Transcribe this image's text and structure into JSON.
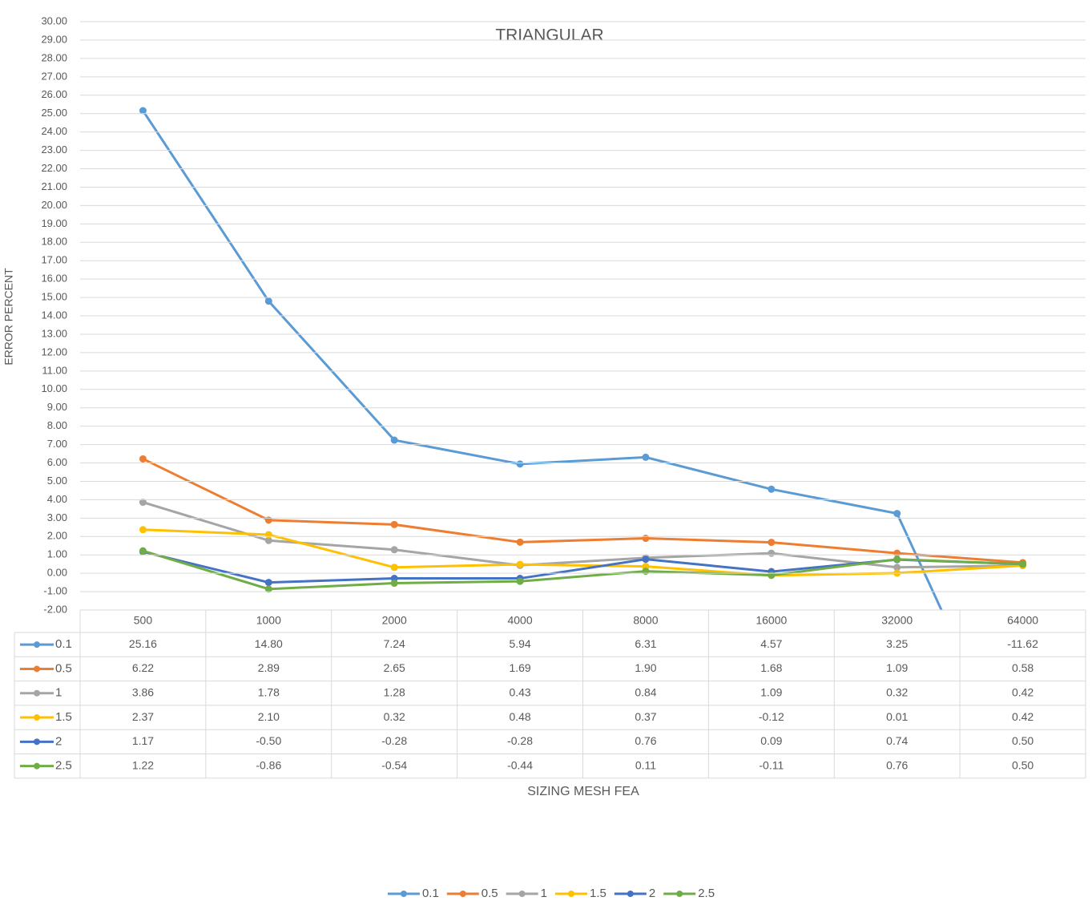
{
  "chart_data": {
    "type": "line",
    "title": "TRIANGULAR",
    "y_label": "ERROR PERCENT",
    "x_label": "SIZING MESH FEA",
    "categories": [
      "500",
      "1000",
      "2000",
      "4000",
      "8000",
      "16000",
      "32000",
      "64000"
    ],
    "series": [
      {
        "name": "0.1",
        "color": "#5b9bd5",
        "values": [
          25.16,
          14.8,
          7.24,
          5.94,
          6.31,
          4.57,
          3.25,
          -11.62
        ],
        "value_labels": [
          "25.16",
          "14.80",
          "7.24",
          "5.94",
          "6.31",
          "4.57",
          "3.25",
          "-11.62"
        ]
      },
      {
        "name": "0.5",
        "color": "#ed7d31",
        "values": [
          6.22,
          2.89,
          2.65,
          1.69,
          1.9,
          1.68,
          1.09,
          0.58
        ],
        "value_labels": [
          "6.22",
          "2.89",
          "2.65",
          "1.69",
          "1.90",
          "1.68",
          "1.09",
          "0.58"
        ]
      },
      {
        "name": "1",
        "color": "#a5a5a5",
        "values": [
          3.86,
          1.78,
          1.28,
          0.43,
          0.84,
          1.09,
          0.32,
          0.42
        ],
        "value_labels": [
          "3.86",
          "1.78",
          "1.28",
          "0.43",
          "0.84",
          "1.09",
          "0.32",
          "0.42"
        ]
      },
      {
        "name": "1.5",
        "color": "#ffc000",
        "values": [
          2.37,
          2.1,
          0.32,
          0.48,
          0.37,
          -0.12,
          0.01,
          0.42
        ],
        "value_labels": [
          "2.37",
          "2.10",
          "0.32",
          "0.48",
          "0.37",
          "-0.12",
          "0.01",
          "0.42"
        ]
      },
      {
        "name": "2",
        "color": "#4472c4",
        "values": [
          1.17,
          -0.5,
          -0.28,
          -0.28,
          0.76,
          0.09,
          0.74,
          0.5
        ],
        "value_labels": [
          "1.17",
          "-0.50",
          "-0.28",
          "-0.28",
          "0.76",
          "0.09",
          "0.74",
          "0.50"
        ]
      },
      {
        "name": "2.5",
        "color": "#70ad47",
        "values": [
          1.22,
          -0.86,
          -0.54,
          -0.44,
          0.11,
          -0.11,
          0.76,
          0.5
        ],
        "value_labels": [
          "1.22",
          "-0.86",
          "-0.54",
          "-0.44",
          "0.11",
          "-0.11",
          "0.76",
          "0.50"
        ]
      }
    ],
    "ylim": [
      -2,
      30
    ],
    "yticks": [
      {
        "value": -2,
        "label": "-2.00"
      },
      {
        "value": -1,
        "label": "-1.00"
      },
      {
        "value": 0,
        "label": "0.00"
      },
      {
        "value": 1,
        "label": "1.00"
      },
      {
        "value": 2,
        "label": "2.00"
      },
      {
        "value": 3,
        "label": "3.00"
      },
      {
        "value": 4,
        "label": "4.00"
      },
      {
        "value": 5,
        "label": "5.00"
      },
      {
        "value": 6,
        "label": "6.00"
      },
      {
        "value": 7,
        "label": "7.00"
      },
      {
        "value": 8,
        "label": "8.00"
      },
      {
        "value": 9,
        "label": "9.00"
      },
      {
        "value": 10,
        "label": "10.00"
      },
      {
        "value": 11,
        "label": "11.00"
      },
      {
        "value": 12,
        "label": "12.00"
      },
      {
        "value": 13,
        "label": "13.00"
      },
      {
        "value": 14,
        "label": "14.00"
      },
      {
        "value": 15,
        "label": "15.00"
      },
      {
        "value": 16,
        "label": "16.00"
      },
      {
        "value": 17,
        "label": "17.00"
      },
      {
        "value": 18,
        "label": "18.00"
      },
      {
        "value": 19,
        "label": "19.00"
      },
      {
        "value": 20,
        "label": "20.00"
      },
      {
        "value": 21,
        "label": "21.00"
      },
      {
        "value": 22,
        "label": "22.00"
      },
      {
        "value": 23,
        "label": "23.00"
      },
      {
        "value": 24,
        "label": "24.00"
      },
      {
        "value": 25,
        "label": "25.00"
      },
      {
        "value": 26,
        "label": "26.00"
      },
      {
        "value": 27,
        "label": "27.00"
      },
      {
        "value": 28,
        "label": "28.00"
      },
      {
        "value": 29,
        "label": "29.00"
      },
      {
        "value": 30,
        "label": "30.00"
      }
    ],
    "grid": true,
    "legend": "bottom"
  }
}
